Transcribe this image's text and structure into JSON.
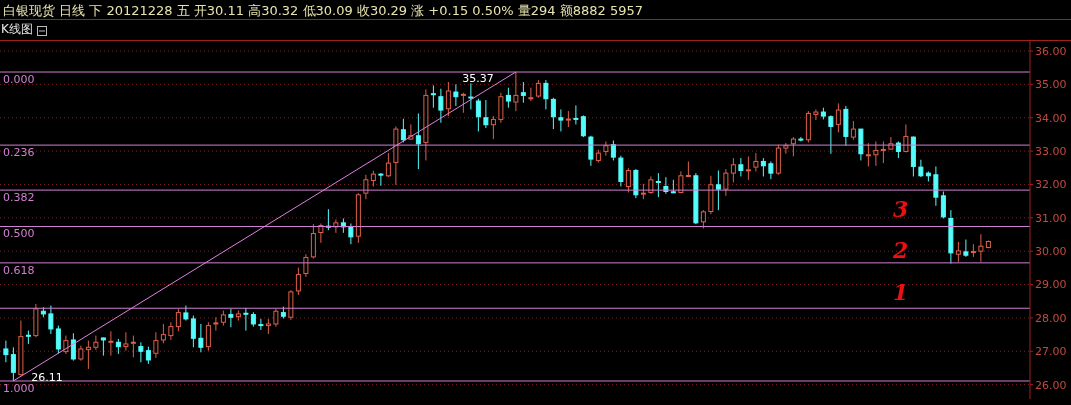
{
  "chart_data": {
    "type": "candlestick",
    "title": "白银现货 日线 下 20121228 五 开30.11 高30.32 低30.09 收30.29 涨 +0.15 0.50% 量294 额8882 5957",
    "subtitle": "K线图",
    "categories": [
      null,
      null,
      null,
      null,
      null,
      null,
      null,
      null,
      null,
      null,
      null,
      null,
      null,
      null,
      null,
      null,
      null,
      null,
      null,
      null,
      null,
      null,
      null,
      null,
      null,
      null,
      null,
      null,
      null,
      null,
      null,
      null,
      null,
      null,
      null,
      null,
      null,
      null,
      null,
      null,
      null,
      null,
      null,
      null,
      null,
      null,
      null,
      null,
      null,
      null,
      null,
      null,
      null,
      null,
      null,
      null,
      null,
      null,
      null,
      null,
      null,
      null,
      null,
      null,
      null,
      null,
      null,
      null,
      null,
      null,
      null,
      null,
      null,
      null,
      null,
      null,
      null,
      null,
      null,
      null,
      null,
      null,
      null,
      null,
      null,
      null,
      null,
      null,
      null,
      null,
      null,
      null,
      null,
      null,
      null,
      null,
      null,
      null,
      null,
      null,
      null,
      null,
      null,
      null,
      null,
      null,
      null,
      null,
      null,
      null,
      null,
      null,
      null,
      null,
      null,
      null,
      null,
      null,
      null,
      null,
      null,
      null,
      null,
      null,
      null,
      null,
      null,
      null,
      null,
      null,
      null,
      null
    ],
    "ohlc": [
      [
        27.07,
        27.32,
        26.67,
        26.9
      ],
      [
        26.9,
        27.12,
        26.11,
        26.37
      ],
      [
        26.3,
        27.92,
        26.27,
        27.44
      ],
      [
        27.48,
        27.62,
        27.22,
        27.46
      ],
      [
        27.47,
        28.42,
        27.42,
        28.27
      ],
      [
        28.2,
        28.32,
        28.02,
        28.12
      ],
      [
        28.12,
        28.37,
        27.52,
        27.67
      ],
      [
        27.67,
        27.77,
        26.94,
        27.07
      ],
      [
        26.99,
        27.47,
        26.92,
        27.32
      ],
      [
        27.34,
        27.54,
        26.72,
        26.77
      ],
      [
        26.77,
        27.17,
        26.72,
        27.07
      ],
      [
        27.05,
        27.32,
        26.47,
        27.12
      ],
      [
        27.12,
        27.47,
        27.04,
        27.27
      ],
      [
        27.4,
        27.41,
        26.87,
        27.34
      ],
      [
        27.27,
        27.6,
        26.87,
        27.3
      ],
      [
        27.27,
        27.37,
        26.92,
        27.14
      ],
      [
        27.14,
        27.57,
        27.02,
        27.22
      ],
      [
        27.24,
        27.47,
        26.82,
        27.27
      ],
      [
        27.14,
        27.27,
        26.67,
        27.0
      ],
      [
        27.02,
        27.14,
        26.62,
        26.74
      ],
      [
        26.94,
        27.57,
        26.8,
        27.32
      ],
      [
        27.34,
        27.82,
        27.24,
        27.5
      ],
      [
        27.47,
        27.87,
        27.34,
        27.74
      ],
      [
        27.74,
        28.27,
        27.6,
        28.16
      ],
      [
        28.15,
        28.37,
        27.92,
        27.97
      ],
      [
        27.97,
        28.07,
        27.12,
        27.39
      ],
      [
        27.39,
        27.82,
        26.97,
        27.12
      ],
      [
        27.14,
        27.87,
        27.02,
        27.77
      ],
      [
        27.82,
        28.02,
        27.62,
        27.85
      ],
      [
        27.87,
        28.22,
        27.77,
        28.09
      ],
      [
        28.1,
        28.27,
        27.72,
        28.02
      ],
      [
        28.04,
        28.22,
        27.92,
        28.12
      ],
      [
        28.14,
        28.3,
        27.62,
        28.12
      ],
      [
        28.1,
        28.17,
        27.74,
        27.82
      ],
      [
        27.8,
        27.97,
        27.64,
        27.78
      ],
      [
        27.77,
        27.97,
        27.52,
        27.82
      ],
      [
        27.82,
        28.27,
        27.74,
        28.2
      ],
      [
        28.16,
        28.34,
        27.98,
        28.05
      ],
      [
        28.02,
        28.83,
        27.94,
        28.78
      ],
      [
        28.81,
        29.51,
        28.69,
        29.3
      ],
      [
        29.33,
        29.91,
        29.23,
        29.81
      ],
      [
        29.83,
        30.81,
        29.78,
        30.53
      ],
      [
        30.56,
        30.83,
        30.25,
        30.77
      ],
      [
        30.75,
        31.26,
        30.63,
        30.72
      ],
      [
        30.73,
        30.95,
        30.55,
        30.85
      ],
      [
        30.85,
        30.98,
        30.55,
        30.73
      ],
      [
        30.73,
        30.83,
        30.21,
        30.43
      ],
      [
        30.45,
        31.74,
        30.25,
        31.69
      ],
      [
        31.74,
        32.29,
        31.56,
        32.14
      ],
      [
        32.12,
        32.41,
        31.94,
        32.31
      ],
      [
        32.31,
        32.34,
        31.96,
        32.29
      ],
      [
        32.26,
        32.94,
        32.22,
        32.64
      ],
      [
        32.66,
        33.74,
        31.99,
        33.66
      ],
      [
        33.64,
        33.97,
        33.26,
        33.34
      ],
      [
        33.36,
        33.8,
        33.34,
        33.46
      ],
      [
        33.46,
        34.13,
        32.46,
        33.22
      ],
      [
        33.26,
        34.85,
        32.72,
        34.67
      ],
      [
        34.72,
        34.97,
        34.3,
        34.7
      ],
      [
        34.63,
        34.87,
        33.85,
        34.23
      ],
      [
        34.27,
        35.07,
        34.05,
        34.8
      ],
      [
        34.77,
        35.0,
        34.35,
        34.63
      ],
      [
        34.68,
        34.75,
        34.15,
        34.7
      ],
      [
        34.62,
        35.03,
        34.25,
        34.6
      ],
      [
        34.5,
        34.57,
        33.59,
        34.03
      ],
      [
        34.0,
        34.53,
        33.69,
        33.79
      ],
      [
        33.79,
        34.05,
        33.36,
        33.95
      ],
      [
        33.95,
        34.75,
        33.85,
        34.63
      ],
      [
        34.67,
        34.9,
        34.3,
        34.5
      ],
      [
        34.47,
        35.37,
        34.2,
        34.67
      ],
      [
        34.75,
        35.07,
        34.45,
        34.67
      ],
      [
        34.58,
        34.9,
        34.5,
        34.6
      ],
      [
        34.65,
        35.13,
        34.6,
        35.03
      ],
      [
        35.03,
        35.13,
        34.25,
        34.57
      ],
      [
        34.55,
        34.6,
        33.66,
        34.03
      ],
      [
        34.0,
        34.25,
        33.59,
        33.93
      ],
      [
        33.93,
        34.2,
        33.72,
        33.96
      ],
      [
        33.98,
        34.37,
        33.8,
        33.95
      ],
      [
        34.03,
        34.07,
        33.42,
        33.46
      ],
      [
        33.42,
        33.46,
        32.56,
        32.76
      ],
      [
        32.72,
        33.04,
        32.66,
        32.94
      ],
      [
        32.99,
        33.29,
        32.86,
        33.16
      ],
      [
        33.19,
        33.32,
        32.72,
        32.82
      ],
      [
        32.79,
        32.86,
        31.94,
        32.09
      ],
      [
        31.94,
        32.49,
        31.76,
        32.42
      ],
      [
        32.42,
        32.46,
        31.59,
        31.69
      ],
      [
        31.71,
        32.02,
        31.56,
        31.74
      ],
      [
        31.76,
        32.24,
        31.72,
        32.14
      ],
      [
        32.09,
        32.34,
        31.62,
        32.06
      ],
      [
        31.94,
        32.22,
        31.72,
        31.79
      ],
      [
        31.78,
        32.14,
        31.74,
        31.76
      ],
      [
        31.76,
        32.39,
        31.74,
        32.26
      ],
      [
        32.24,
        32.69,
        32.22,
        32.27
      ],
      [
        32.26,
        32.34,
        30.81,
        30.85
      ],
      [
        30.88,
        31.23,
        30.68,
        31.18
      ],
      [
        31.19,
        32.26,
        31.11,
        31.99
      ],
      [
        31.99,
        32.42,
        31.23,
        31.86
      ],
      [
        31.86,
        32.46,
        31.66,
        32.34
      ],
      [
        32.34,
        32.79,
        32.06,
        32.59
      ],
      [
        32.59,
        32.79,
        32.24,
        32.42
      ],
      [
        32.42,
        32.84,
        32.14,
        32.44
      ],
      [
        32.52,
        32.94,
        32.39,
        32.69
      ],
      [
        32.69,
        32.79,
        32.24,
        32.56
      ],
      [
        32.62,
        32.69,
        32.16,
        32.34
      ],
      [
        32.34,
        33.19,
        32.29,
        33.09
      ],
      [
        33.09,
        33.24,
        32.92,
        33.16
      ],
      [
        33.22,
        33.42,
        32.84,
        33.36
      ],
      [
        33.36,
        33.42,
        33.29,
        33.34
      ],
      [
        33.34,
        34.2,
        33.26,
        34.13
      ],
      [
        34.1,
        34.25,
        33.93,
        34.17
      ],
      [
        34.17,
        34.3,
        33.95,
        34.05
      ],
      [
        34.03,
        34.07,
        32.92,
        33.74
      ],
      [
        33.8,
        34.43,
        33.56,
        34.23
      ],
      [
        34.25,
        34.35,
        33.16,
        33.44
      ],
      [
        33.42,
        33.9,
        33.34,
        33.66
      ],
      [
        33.66,
        33.66,
        32.72,
        32.92
      ],
      [
        32.87,
        33.24,
        32.54,
        32.89
      ],
      [
        32.89,
        33.29,
        32.56,
        33.02
      ],
      [
        33.03,
        33.29,
        32.64,
        33.05
      ],
      [
        33.06,
        33.42,
        33.04,
        33.22
      ],
      [
        33.24,
        33.29,
        32.79,
        32.99
      ],
      [
        32.99,
        33.8,
        32.96,
        33.44
      ],
      [
        33.42,
        33.44,
        32.24,
        32.54
      ],
      [
        32.52,
        32.74,
        32.22,
        32.26
      ],
      [
        32.34,
        32.39,
        32.09,
        32.26
      ],
      [
        32.29,
        32.54,
        31.36,
        31.62
      ],
      [
        31.66,
        31.79,
        30.98,
        31.03
      ],
      [
        30.98,
        31.23,
        29.63,
        29.95
      ],
      [
        29.91,
        30.28,
        29.68,
        30.01
      ],
      [
        29.98,
        30.35,
        29.83,
        29.88
      ],
      [
        29.97,
        30.21,
        29.83,
        29.99
      ],
      [
        30.0,
        30.51,
        29.68,
        30.15
      ],
      [
        30.11,
        30.32,
        30.09,
        30.29
      ]
    ],
    "series": [
      {
        "type": "line",
        "color": "#e080e0",
        "values": [
          null,
          26.11,
          null,
          null,
          null,
          null,
          null,
          null,
          null,
          null,
          null,
          null,
          null,
          null,
          null,
          null,
          null,
          null,
          null,
          null,
          null,
          null,
          null,
          null,
          null,
          null,
          null,
          null,
          null,
          null,
          null,
          null,
          null,
          null,
          null,
          null,
          null,
          null,
          null,
          null,
          null,
          null,
          null,
          null,
          null,
          null,
          null,
          null,
          null,
          null,
          null,
          null,
          null,
          null,
          null,
          null,
          null,
          null,
          null,
          null,
          null,
          null,
          null,
          null,
          null,
          null,
          null,
          null,
          35.37,
          null,
          null,
          null,
          null,
          null,
          null,
          null,
          null,
          null,
          null,
          null,
          null,
          null,
          null,
          null,
          null,
          null,
          null,
          null,
          null,
          null,
          null,
          null,
          null,
          null,
          null,
          null,
          null,
          null,
          null,
          null,
          null,
          null,
          null,
          null,
          null,
          null,
          null,
          null,
          null,
          null,
          null,
          null,
          null,
          null,
          null,
          null,
          null,
          null,
          null,
          null,
          null,
          null,
          null,
          null,
          null,
          null,
          null,
          null,
          null,
          null,
          null,
          null
        ]
      }
    ],
    "ylim": [
      25.57,
      36.3
    ],
    "yticks": [
      {
        "value": 26,
        "label": "26.00"
      },
      {
        "value": 27,
        "label": "27.00"
      },
      {
        "value": 28,
        "label": "28.00"
      },
      {
        "value": 29,
        "label": "29.00"
      },
      {
        "value": 30,
        "label": "30.00"
      },
      {
        "value": 31,
        "label": "31.00"
      },
      {
        "value": 32,
        "label": "32.00"
      },
      {
        "value": 33,
        "label": "33.00"
      },
      {
        "value": 34,
        "label": "34.00"
      },
      {
        "value": 35,
        "label": "35.00"
      },
      {
        "value": 36,
        "label": "36.00"
      }
    ],
    "tick_labels": "y",
    "grid": "y",
    "ref_lines": [
      {
        "axis": "y",
        "value": 35.37,
        "color": "#d080d0"
      },
      {
        "axis": "y",
        "value": 33.18,
        "color": "#d080d0"
      },
      {
        "axis": "y",
        "value": 31.83,
        "color": "#d080d0"
      },
      {
        "axis": "y",
        "value": 30.74,
        "color": "#d080d0"
      },
      {
        "axis": "y",
        "value": 29.65,
        "color": "#d080d0"
      },
      {
        "axis": "y",
        "value": 28.29,
        "color": "#d080d0"
      },
      {
        "axis": "y",
        "value": 26.11,
        "color": "#d080d0"
      }
    ],
    "annotations": [
      {
        "text": "0.000",
        "y": 35.37
      },
      {
        "text": "0.236",
        "y": 33.18
      },
      {
        "text": "0.382",
        "y": 31.83
      },
      {
        "text": "0.500",
        "y": 30.74
      },
      {
        "text": "0.618",
        "y": 29.65
      },
      {
        "text": "1.000",
        "y": 26.11
      },
      {
        "text": "35.37",
        "y": 35.37
      },
      {
        "text": "26.11",
        "y": 26.11
      },
      "3",
      "2",
      "1"
    ]
  }
}
